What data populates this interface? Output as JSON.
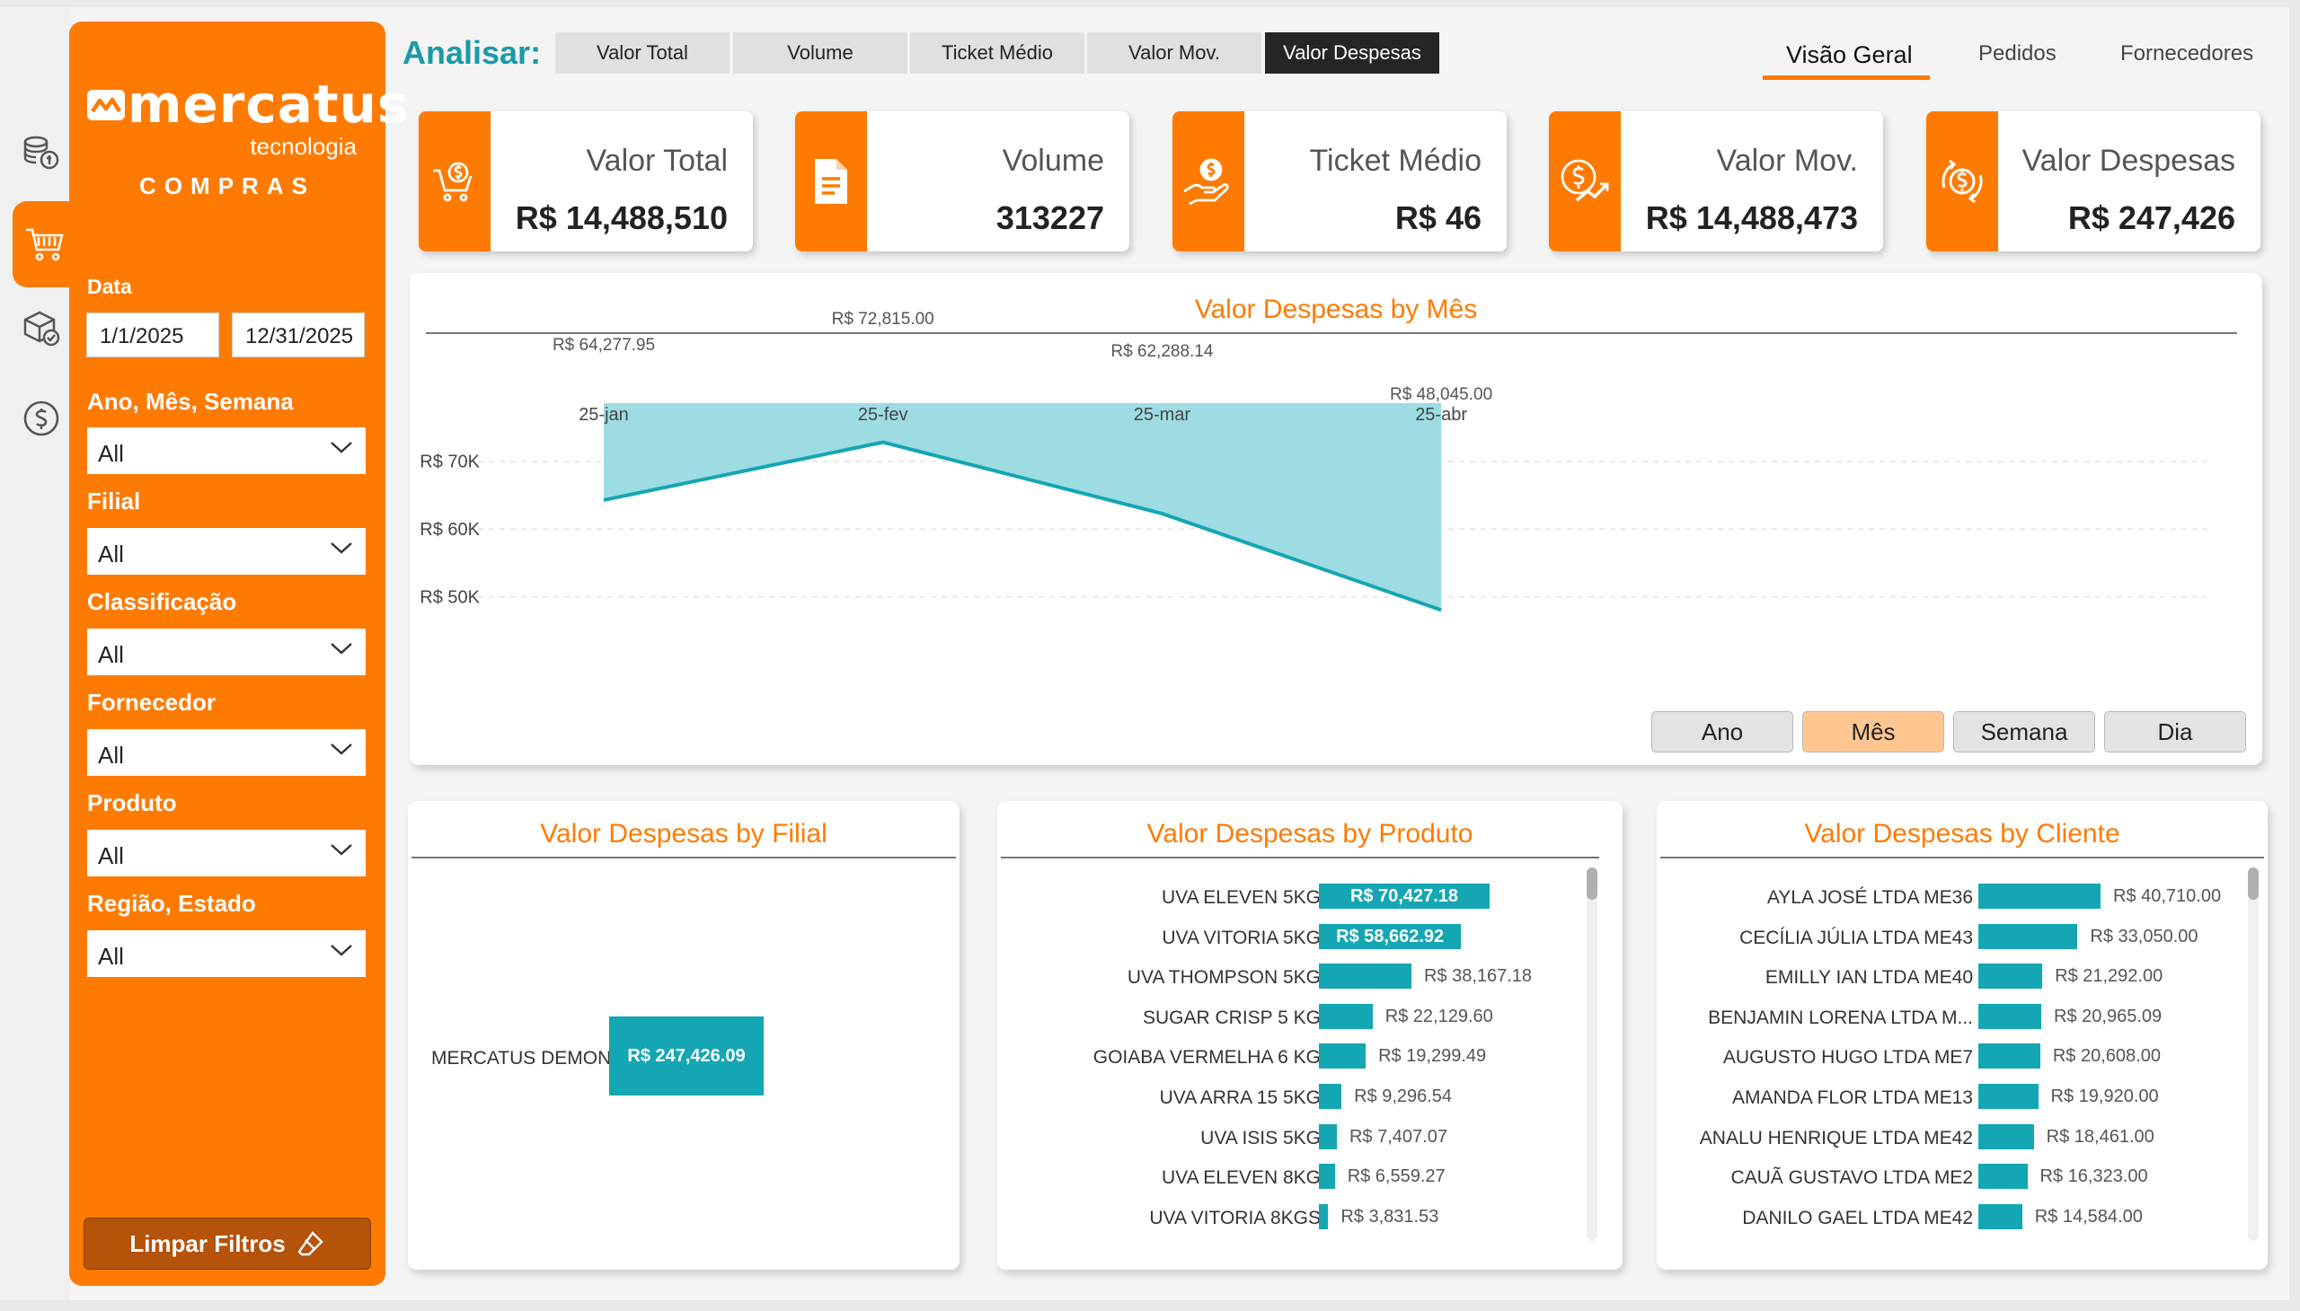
{
  "brand": {
    "name": "mercatus",
    "sub": "tecnologia",
    "module": "COMPRAS"
  },
  "rail": [
    "coins-stack-icon",
    "cart-icon",
    "package-check-icon",
    "dollar-circle-icon"
  ],
  "filters": {
    "data_label": "Data",
    "date_start": "1/1/2025",
    "date_end": "12/31/2025",
    "dropdowns": [
      {
        "label": "Ano, Mês, Semana",
        "value": "All"
      },
      {
        "label": "Filial",
        "value": "All"
      },
      {
        "label": "Classificação",
        "value": "All"
      },
      {
        "label": "Fornecedor",
        "value": "All"
      },
      {
        "label": "Produto",
        "value": "All"
      },
      {
        "label": "Região, Estado",
        "value": "All"
      }
    ],
    "clear_label": "Limpar Filtros"
  },
  "analisar": {
    "label": "Analisar:",
    "tabs": [
      "Valor Total",
      "Volume",
      "Ticket Médio",
      "Valor Mov.",
      "Valor Despesas"
    ],
    "active": "Valor Despesas"
  },
  "nav": {
    "tabs": [
      "Visão Geral",
      "Pedidos",
      "Fornecedores"
    ],
    "active": "Visão Geral"
  },
  "kpis": [
    {
      "title": "Valor Total",
      "value": "R$ 14,488,510",
      "icon": "cart-dollar-icon"
    },
    {
      "title": "Volume",
      "value": "313227",
      "icon": "document-icon"
    },
    {
      "title": "Ticket Médio",
      "value": "R$ 46",
      "icon": "hand-coin-icon"
    },
    {
      "title": "Valor Mov.",
      "value": "R$ 14,488,473",
      "icon": "coin-growth-icon"
    },
    {
      "title": "Valor Despesas",
      "value": "R$ 247,426",
      "icon": "coin-cycle-icon"
    }
  ],
  "colors": {
    "accent": "#ff7a00",
    "teal": "#14a6b3",
    "area_fill": "#9ddce2",
    "title_teal": "#1a9aa8"
  },
  "granularity": {
    "buttons": [
      "Ano",
      "Mês",
      "Semana",
      "Dia"
    ],
    "active": "Mês"
  },
  "chart_data": [
    {
      "type": "area",
      "title": "Valor Despesas by Mês",
      "categories": [
        "25-jan",
        "25-fev",
        "25-mar",
        "25-abr"
      ],
      "values": [
        64277.95,
        72815.0,
        62288.14,
        48045.0
      ],
      "value_labels": [
        "R$ 64,277.95",
        "R$ 72,815.00",
        "R$ 62,288.14",
        "R$ 48,045.00"
      ],
      "yticks": [
        50000,
        60000,
        70000
      ],
      "ytick_labels": [
        "R$ 50K",
        "R$ 60K",
        "R$ 70K"
      ],
      "ylim": [
        45000,
        75000
      ],
      "grid": true
    },
    {
      "type": "bar",
      "title": "Valor Despesas by Filial",
      "categories": [
        "MERCATUS DEMONSTRA..."
      ],
      "values": [
        247426.09
      ],
      "value_labels": [
        "R$ 247,426.09"
      ]
    },
    {
      "type": "bar",
      "title": "Valor Despesas by Produto",
      "categories": [
        "UVA ELEVEN 5KG",
        "UVA VITORIA 5KG",
        "UVA THOMPSON 5KG",
        "SUGAR CRISP 5 KG",
        "GOIABA VERMELHA 6 KG",
        "UVA ARRA 15 5KG",
        "UVA ISIS 5KG",
        "UVA ELEVEN 8KG",
        "UVA VITORIA 8KGS"
      ],
      "values": [
        70427.18,
        58662.92,
        38167.18,
        22129.6,
        19299.49,
        9296.54,
        7407.07,
        6559.27,
        3831.53
      ],
      "value_labels": [
        "R$ 70,427.18",
        "R$ 58,662.92",
        "R$ 38,167.18",
        "R$ 22,129.60",
        "R$ 19,299.49",
        "R$ 9,296.54",
        "R$ 7,407.07",
        "R$ 6,559.27",
        "R$ 3,831.53"
      ]
    },
    {
      "type": "bar",
      "title": "Valor Despesas by Cliente",
      "categories": [
        "AYLA JOSÉ LTDA ME36",
        "CECÍLIA JÚLIA LTDA ME43",
        "EMILLY IAN LTDA ME40",
        "BENJAMIN LORENA LTDA M...",
        "AUGUSTO HUGO LTDA ME7",
        "AMANDA FLOR LTDA ME13",
        "ANALU HENRIQUE LTDA ME42",
        "CAUÃ GUSTAVO LTDA ME2",
        "DANILO GAEL LTDA ME42"
      ],
      "values": [
        40710.0,
        33050.0,
        21292.0,
        20965.09,
        20608.0,
        19920.0,
        18461.0,
        16323.0,
        14584.0
      ],
      "value_labels": [
        "R$ 40,710.00",
        "R$ 33,050.00",
        "R$ 21,292.00",
        "R$ 20,965.09",
        "R$ 20,608.00",
        "R$ 19,920.00",
        "R$ 18,461.00",
        "R$ 16,323.00",
        "R$ 14,584.00"
      ]
    }
  ]
}
